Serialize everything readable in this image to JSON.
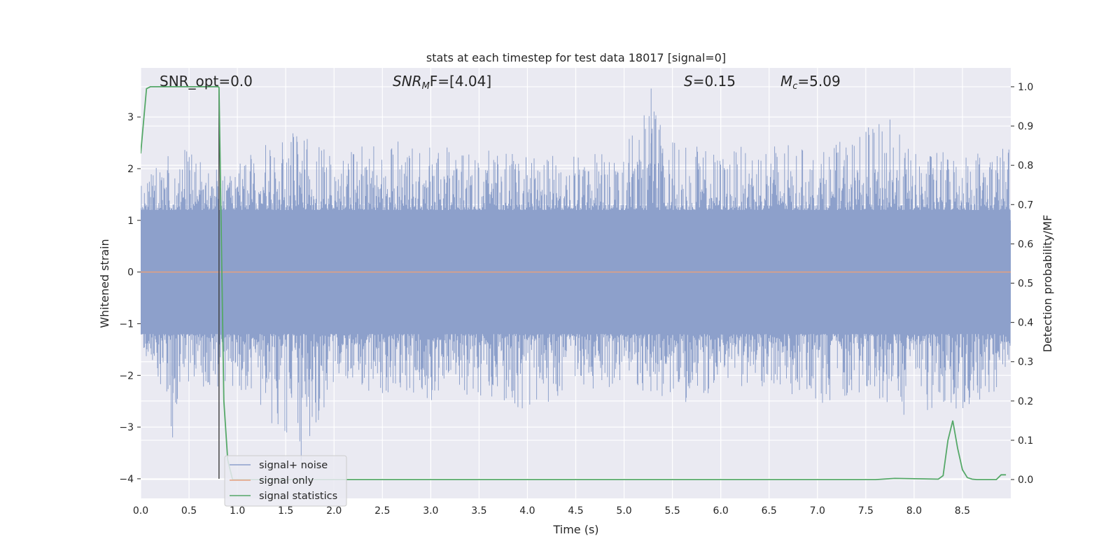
{
  "chart_data": {
    "type": "line",
    "title": "stats at each timestep for test data 18017 [signal=0]",
    "xlabel": "Time (s)",
    "ylabel_left": "Whitened strain",
    "ylabel_right": "Detection probability/MF",
    "xlim": [
      0.0,
      9.0
    ],
    "ylim_left": [
      -4.38,
      3.95
    ],
    "ylim_right": [
      -0.048,
      1.048
    ],
    "xticks": [
      "0.0",
      "0.5",
      "1.0",
      "1.5",
      "2.0",
      "2.5",
      "3.0",
      "3.5",
      "4.0",
      "4.5",
      "5.0",
      "5.5",
      "6.0",
      "6.5",
      "7.0",
      "7.5",
      "8.0",
      "8.5"
    ],
    "yticks_left": [
      "−4",
      "−3",
      "−2",
      "−1",
      "0",
      "1",
      "2",
      "3"
    ],
    "yticks_right": [
      "0.0",
      "0.1",
      "0.2",
      "0.3",
      "0.4",
      "0.5",
      "0.6",
      "0.7",
      "0.8",
      "0.9",
      "1.0"
    ],
    "grid": true,
    "legend_position": "lower-left",
    "background": "#eaeaf2",
    "annotations": {
      "snr_opt": "SNR_opt=0.0",
      "snr_mf_label": "SNR",
      "snr_mf_sub": "M",
      "snr_mf_value": "F=[4.04]",
      "s_label": "S",
      "s_value": "=0.15",
      "mc_label": "M",
      "mc_sub": "c",
      "mc_value": "=5.09"
    },
    "vertical_marker": {
      "x": 0.81,
      "y_range": [
        -4.0,
        3.55
      ],
      "color": "#3a3a3a"
    },
    "series": [
      {
        "name": "signal+ noise",
        "color": "#8da0cb",
        "axis": "left",
        "noise_band": [
          -1.0,
          1.0
        ],
        "envelope_top": [
          [
            0.0,
            1.7
          ],
          [
            0.25,
            2.35
          ],
          [
            0.5,
            2.4
          ],
          [
            0.9,
            2.0
          ],
          [
            1.5,
            2.8
          ],
          [
            2.0,
            2.3
          ],
          [
            2.5,
            2.6
          ],
          [
            3.0,
            2.5
          ],
          [
            3.5,
            2.4
          ],
          [
            4.0,
            2.3
          ],
          [
            4.5,
            2.3
          ],
          [
            5.0,
            2.4
          ],
          [
            5.28,
            3.55
          ],
          [
            5.5,
            2.6
          ],
          [
            6.0,
            2.3
          ],
          [
            6.5,
            2.6
          ],
          [
            7.0,
            2.3
          ],
          [
            7.5,
            2.8
          ],
          [
            7.75,
            2.95
          ],
          [
            8.0,
            2.3
          ],
          [
            8.5,
            2.4
          ],
          [
            9.0,
            2.5
          ]
        ],
        "envelope_bottom": [
          [
            0.0,
            -1.4
          ],
          [
            0.3,
            -2.8
          ],
          [
            0.33,
            -3.2
          ],
          [
            0.5,
            -2.3
          ],
          [
            1.0,
            -2.2
          ],
          [
            1.66,
            -3.65
          ],
          [
            2.0,
            -2.2
          ],
          [
            2.5,
            -2.4
          ],
          [
            3.0,
            -2.5
          ],
          [
            3.5,
            -2.4
          ],
          [
            4.0,
            -2.7
          ],
          [
            4.5,
            -2.3
          ],
          [
            5.0,
            -2.2
          ],
          [
            5.5,
            -2.6
          ],
          [
            6.0,
            -2.3
          ],
          [
            6.5,
            -2.2
          ],
          [
            7.0,
            -2.6
          ],
          [
            7.5,
            -2.3
          ],
          [
            7.9,
            -2.8
          ],
          [
            8.4,
            -2.6
          ],
          [
            8.6,
            -2.9
          ],
          [
            9.0,
            -2.0
          ]
        ]
      },
      {
        "name": "signal only",
        "color": "#e5a07e",
        "axis": "left",
        "x": [
          0.0,
          9.0
        ],
        "y": [
          0.0,
          0.0
        ]
      },
      {
        "name": "signal statistics",
        "color": "#55a868",
        "axis": "right",
        "x": [
          0.0,
          0.06,
          0.1,
          0.2,
          0.4,
          0.6,
          0.8,
          0.81,
          0.86,
          0.9,
          0.95,
          1.0,
          1.5,
          2.0,
          3.0,
          4.0,
          5.0,
          6.0,
          7.0,
          7.6,
          7.8,
          8.0,
          8.25,
          8.3,
          8.35,
          8.4,
          8.45,
          8.5,
          8.55,
          8.6,
          8.65,
          8.7,
          8.8,
          8.85,
          8.9,
          8.95
        ],
        "y": [
          0.83,
          0.995,
          1.0,
          1.0,
          1.0,
          1.0,
          1.0,
          0.998,
          0.2,
          0.05,
          0.0,
          0.0,
          0.0,
          0.0,
          0.0,
          0.0,
          0.0,
          0.0,
          0.0,
          0.0,
          0.003,
          0.002,
          0.001,
          0.01,
          0.1,
          0.15,
          0.08,
          0.025,
          0.005,
          0.001,
          0.0,
          0.0,
          0.0,
          0.0,
          0.012,
          0.012
        ]
      }
    ]
  }
}
